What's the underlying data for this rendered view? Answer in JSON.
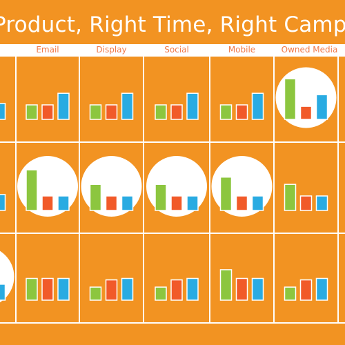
{
  "title": "Product, Right Time, Right Campa",
  "columns": [
    "Email",
    "Display",
    "Social",
    "Mobile",
    "Owned Media"
  ],
  "colors": {
    "background": "#f29322",
    "green": "#8cc63f",
    "red": "#f15a29",
    "blue": "#29abe2",
    "line": "#ffffff",
    "header_text": "#f0794a"
  },
  "chart_data": {
    "type": "bar",
    "title": "Product, Right Time, Right Campa",
    "series_colors": [
      "green",
      "red",
      "blue"
    ],
    "rows": [
      {
        "left_edge": {
          "values": [
            0.55,
            0,
            0.55
          ]
        },
        "cells": [
          {
            "column": "Email",
            "values": [
              0.5,
              0.5,
              0.9
            ],
            "highlight": false
          },
          {
            "column": "Display",
            "values": [
              0.5,
              0.5,
              0.9
            ],
            "highlight": false
          },
          {
            "column": "Social",
            "values": [
              0.5,
              0.5,
              0.9
            ],
            "highlight": false
          },
          {
            "column": "Mobile",
            "values": [
              0.5,
              0.5,
              0.9
            ],
            "highlight": false
          },
          {
            "column": "Owned Media",
            "values": [
              1.4,
              0.45,
              0.85
            ],
            "highlight": true
          }
        ]
      },
      {
        "left_edge": {
          "values": [
            0.55,
            0,
            0.55
          ]
        },
        "cells": [
          {
            "column": "Email",
            "values": [
              1.4,
              0.5,
              0.5
            ],
            "highlight": true
          },
          {
            "column": "Display",
            "values": [
              0.9,
              0.5,
              0.5
            ],
            "highlight": true
          },
          {
            "column": "Social",
            "values": [
              0.9,
              0.5,
              0.5
            ],
            "highlight": true
          },
          {
            "column": "Mobile",
            "values": [
              1.15,
              0.5,
              0.5
            ],
            "highlight": true
          },
          {
            "column": "Owned Media",
            "values": [
              0.9,
              0.5,
              0.5
            ],
            "highlight": false
          }
        ]
      },
      {
        "left_edge": {
          "values": [
            0,
            0,
            0.55
          ],
          "highlight": true
        },
        "cells": [
          {
            "column": "Email",
            "values": [
              0.75,
              0.75,
              0.75
            ],
            "highlight": false
          },
          {
            "column": "Display",
            "values": [
              0.45,
              0.7,
              0.75
            ],
            "highlight": false
          },
          {
            "column": "Social",
            "values": [
              0.45,
              0.7,
              0.75
            ],
            "highlight": false
          },
          {
            "column": "Mobile",
            "values": [
              1.05,
              0.75,
              0.75
            ],
            "highlight": false
          },
          {
            "column": "Owned Media",
            "values": [
              0.45,
              0.7,
              0.75
            ],
            "highlight": false
          }
        ]
      }
    ]
  }
}
